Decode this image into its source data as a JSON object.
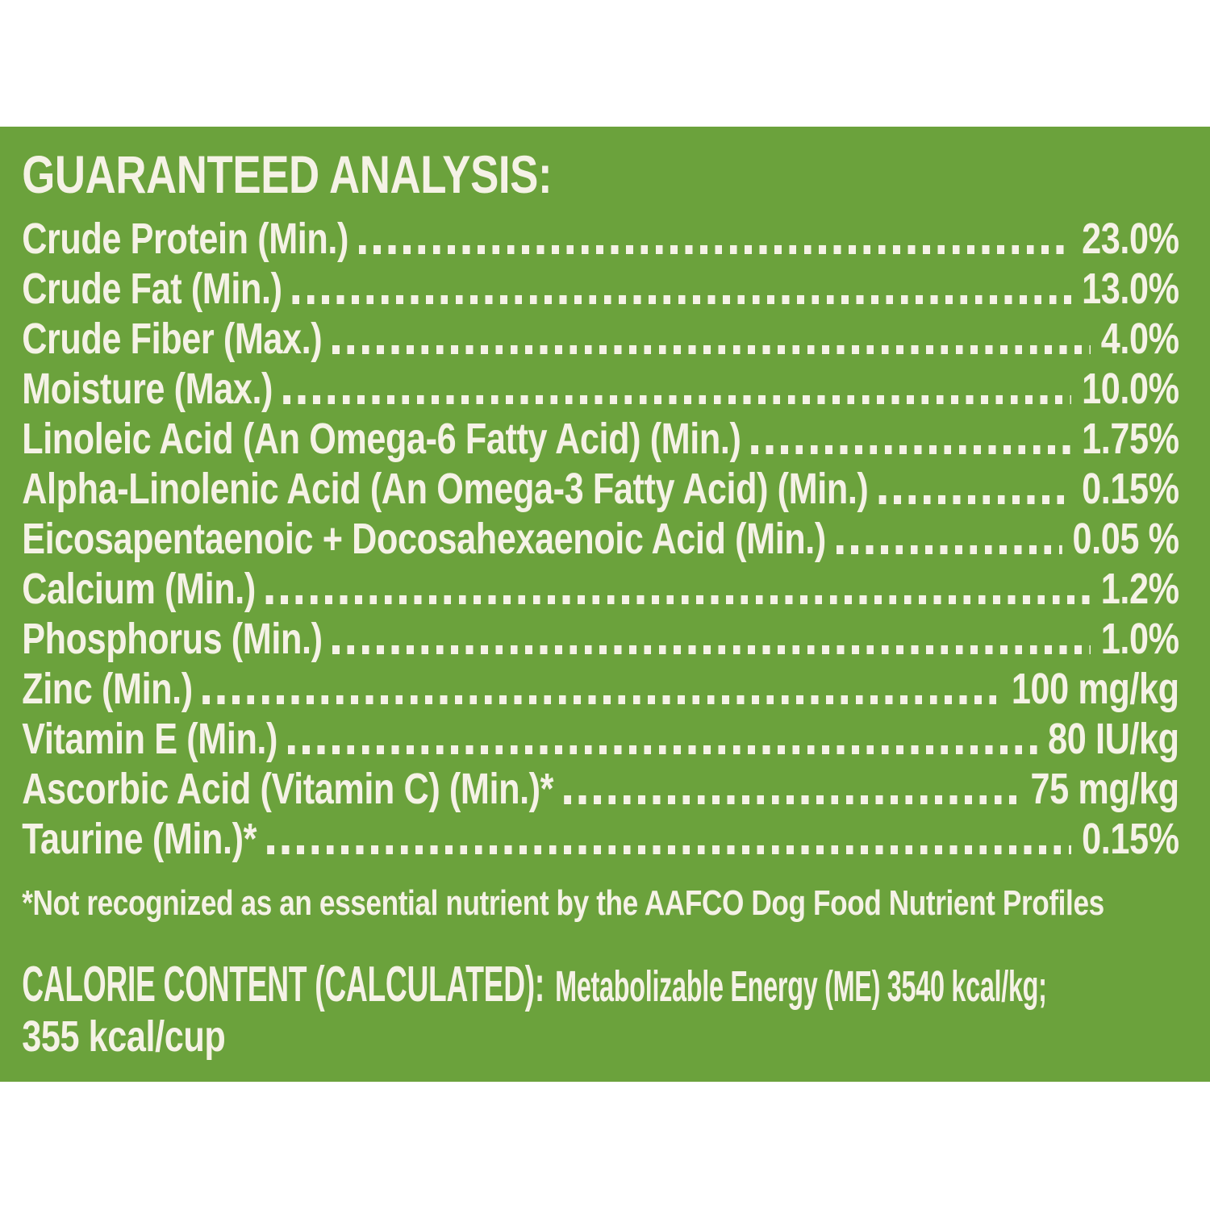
{
  "panel": {
    "bg_color": "#6BA23C",
    "text_color": "#F5F2E6",
    "title": "GUARANTEED ANALYSIS:",
    "rows": [
      {
        "label": "Crude Protein (Min.)",
        "value": "23.0%"
      },
      {
        "label": "Crude Fat (Min.)",
        "value": "13.0%"
      },
      {
        "label": "Crude Fiber (Max.)",
        "value": "4.0%"
      },
      {
        "label": "Moisture (Max.)",
        "value": "10.0%"
      },
      {
        "label": "Linoleic Acid (An Omega-6 Fatty Acid) (Min.)",
        "value": "1.75%"
      },
      {
        "label": "Alpha-Linolenic Acid (An Omega-3 Fatty Acid) (Min.)",
        "value": "0.15%"
      },
      {
        "label": "Eicosapentaenoic + Docosahexaenoic Acid (Min.)",
        "value": "0.05 %"
      },
      {
        "label": "Calcium (Min.)",
        "value": "1.2%"
      },
      {
        "label": "Phosphorus (Min.)",
        "value": "1.0%"
      },
      {
        "label": "Zinc (Min.)",
        "value": "100 mg/kg"
      },
      {
        "label": "Vitamin E (Min.)",
        "value": "80 IU/kg"
      },
      {
        "label": "Ascorbic Acid (Vitamin C) (Min.)*",
        "value": "75 mg/kg"
      },
      {
        "label": "Taurine (Min.)*",
        "value": "0.15%"
      }
    ],
    "footnote": "*Not recognized as an essential nutrient by the AAFCO Dog Food Nutrient Profiles",
    "calorie": {
      "heading": "CALORIE CONTENT (CALCULATED):",
      "line1": "Metabolizable Energy (ME) 3540 kcal/kg;",
      "line2": "355 kcal/cup"
    }
  }
}
